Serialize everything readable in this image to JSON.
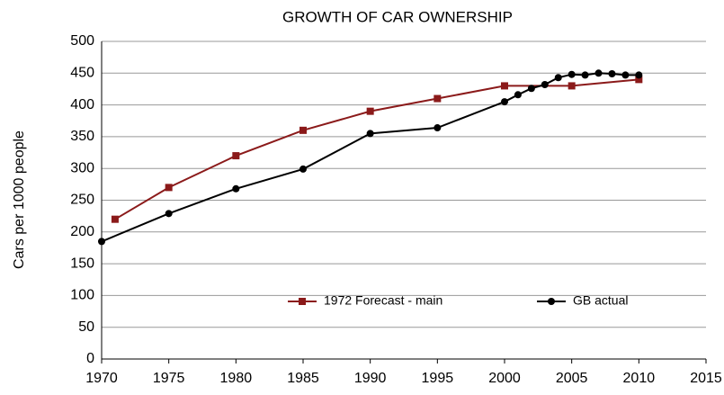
{
  "chart_data": {
    "type": "line",
    "title": "GROWTH OF CAR OWNERSHIP",
    "y_label": "Cars per 1000 people",
    "series": [
      {
        "name": "1972 Forecast - main",
        "color": "#8b1a1a",
        "marker": "square",
        "x": [
          1971,
          1975,
          1980,
          1985,
          1990,
          1995,
          2000,
          2005,
          2010
        ],
        "values": [
          220,
          270,
          320,
          360,
          390,
          410,
          430,
          430,
          440
        ]
      },
      {
        "name": "GB actual",
        "color": "#000000",
        "marker": "circle",
        "x": [
          1970,
          1975,
          1980,
          1985,
          1990,
          1995,
          2000,
          2001,
          2002,
          2003,
          2004,
          2005,
          2006,
          2007,
          2008,
          2009,
          2010
        ],
        "values": [
          185,
          229,
          268,
          299,
          355,
          364,
          405,
          416,
          426,
          432,
          443,
          448,
          447,
          450,
          449,
          447,
          447
        ]
      }
    ],
    "xlim": [
      1970,
      2015
    ],
    "xticks": [
      1970,
      1975,
      1980,
      1985,
      1990,
      1995,
      2000,
      2005,
      2010,
      2015
    ],
    "ylim": [
      0,
      500
    ],
    "yticks": [
      0,
      50,
      100,
      150,
      200,
      250,
      300,
      350,
      400,
      450,
      500
    ],
    "grid": true,
    "legend": "lower center"
  }
}
